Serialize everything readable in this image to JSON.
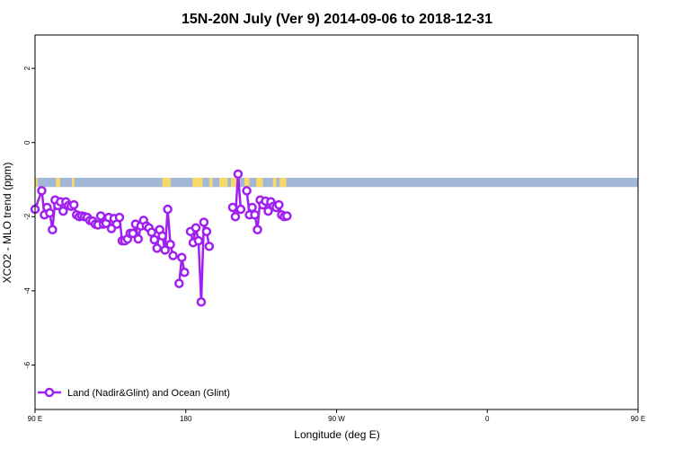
{
  "chart_data": {
    "type": "line",
    "title": "15N-20N July (Ver 9)   2014-09-06 to 2018-12-31",
    "xlabel": "Longitude (deg E)",
    "ylabel": "XCO2 - MLO trend (ppm)",
    "xlim": [
      90,
      450
    ],
    "ylim": [
      -7.2,
      2.9
    ],
    "x_ticks": [
      {
        "value": 90,
        "label": "90 E"
      },
      {
        "value": 180,
        "label": "180"
      },
      {
        "value": 270,
        "label": "90 W"
      },
      {
        "value": 360,
        "label": "0"
      },
      {
        "value": 450,
        "label": "90 E"
      },
      {
        "value": 540,
        "label": "180"
      }
    ],
    "y_ticks": [
      2,
      0,
      -2,
      -4,
      -6
    ],
    "grid": false,
    "legend_position": "bottom-left",
    "series": [
      {
        "name": "Land (Nadir&Glint) and Ocean (Glint)",
        "color": "#a020f0",
        "points": [
          [
            90,
            -1.8
          ],
          [
            94,
            -1.3
          ],
          [
            95.6,
            -1.95
          ],
          [
            97.2,
            -1.75
          ],
          [
            98.8,
            -1.9
          ],
          [
            100.4,
            -2.35
          ],
          [
            102,
            -1.55
          ],
          [
            103.6,
            -1.7
          ],
          [
            105.2,
            -1.6
          ],
          [
            106.8,
            -1.85
          ],
          [
            108.4,
            -1.6
          ],
          [
            110,
            -1.7
          ],
          [
            111.6,
            -1.72
          ],
          [
            113.2,
            -1.68
          ],
          [
            114.8,
            -1.95
          ],
          [
            116.4,
            -2.0
          ],
          [
            118,
            -1.98
          ],
          [
            119.6,
            -2.0
          ],
          [
            121.2,
            -2.02
          ],
          [
            122.8,
            -2.1
          ],
          [
            124.4,
            -2.12
          ],
          [
            126,
            -2.2
          ],
          [
            127.6,
            -2.22
          ],
          [
            129.2,
            -1.98
          ],
          [
            130.8,
            -2.2
          ],
          [
            132.4,
            -2.18
          ],
          [
            134,
            -2.02
          ],
          [
            135.6,
            -2.32
          ],
          [
            137.2,
            -2.05
          ],
          [
            138.8,
            -2.2
          ],
          [
            140.4,
            -2.02
          ],
          [
            142,
            -2.65
          ],
          [
            143.6,
            -2.65
          ],
          [
            145.2,
            -2.6
          ],
          [
            146.8,
            -2.45
          ],
          [
            148.4,
            -2.45
          ],
          [
            150,
            -2.2
          ],
          [
            151.6,
            -2.6
          ],
          [
            153.2,
            -2.25
          ],
          [
            154.8,
            -2.1
          ],
          [
            156.4,
            -2.25
          ],
          [
            158,
            -2.3
          ],
          [
            159.6,
            -2.42
          ],
          [
            161.2,
            -2.62
          ],
          [
            162.8,
            -2.85
          ],
          [
            164.4,
            -2.35
          ],
          [
            166,
            -2.52
          ],
          [
            167.6,
            -2.9
          ],
          [
            169.2,
            -1.8
          ],
          [
            170.8,
            -2.75
          ],
          [
            172.4,
            -3.05
          ],
          null,
          [
            176,
            -3.8
          ],
          [
            177.6,
            -3.1
          ],
          [
            179.2,
            -3.5
          ],
          null,
          [
            182.8,
            -2.4
          ],
          [
            184.4,
            -2.7
          ],
          [
            186,
            -2.3
          ],
          [
            187.6,
            -2.65
          ],
          [
            189.2,
            -4.3
          ],
          [
            190.8,
            -2.15
          ],
          [
            192.4,
            -2.4
          ],
          [
            194,
            -2.8
          ],
          null,
          [
            208,
            -1.75
          ],
          [
            209.6,
            -2.0
          ],
          [
            211.2,
            -0.85
          ],
          [
            212.8,
            -1.8
          ],
          null,
          [
            216.4,
            -1.3
          ],
          [
            218,
            -1.95
          ],
          [
            219.6,
            -1.75
          ],
          [
            221.2,
            -1.95
          ],
          [
            222.8,
            -2.35
          ],
          [
            224.4,
            -1.55
          ],
          [
            226,
            -1.68
          ],
          [
            227.6,
            -1.58
          ],
          [
            229.2,
            -1.85
          ],
          [
            230.8,
            -1.6
          ],
          [
            232.4,
            -1.72
          ],
          [
            234,
            -1.75
          ],
          [
            235.6,
            -1.68
          ],
          [
            237.2,
            -1.95
          ],
          [
            238.8,
            -2.0
          ],
          [
            240.4,
            -1.98
          ]
        ]
      }
    ],
    "land_band": {
      "y_range": [
        -1.2,
        -0.95
      ],
      "ocean_color": "#a3b7d9",
      "land_color": "#f7d96a",
      "land_segments_lon": [
        [
          90,
          91.5
        ],
        [
          102.5,
          105
        ],
        [
          112,
          113.5
        ],
        [
          166,
          171
        ],
        [
          184,
          190
        ],
        [
          194,
          196
        ],
        [
          200,
          205
        ],
        [
          207,
          211
        ],
        [
          215,
          218
        ],
        [
          222,
          226
        ],
        [
          232,
          234
        ],
        [
          236,
          240
        ]
      ]
    }
  },
  "legend": {
    "label": "Land (Nadir&Glint) and Ocean (Glint)"
  }
}
